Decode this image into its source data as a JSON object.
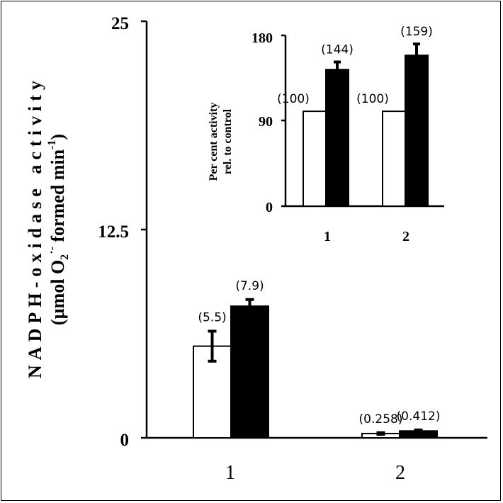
{
  "chart_data": [
    {
      "type": "bar",
      "ylabel_line1": "NADPH-oxidase activity",
      "ylabel_line2_parts": [
        "(µmol O",
        "2",
        "·",
        "-",
        " formed min",
        "-1",
        ")"
      ],
      "categories": [
        "1",
        "2"
      ],
      "ylim": [
        0,
        25
      ],
      "yticks": [
        "0",
        "12.5",
        "25"
      ],
      "series": [
        {
          "fill": "#ffffff",
          "values": [
            5.5,
            0.258
          ],
          "errors": [
            0.9,
            0.05
          ],
          "labels": [
            "(5.5)",
            "(0.258)"
          ]
        },
        {
          "fill": "#000000",
          "values": [
            7.9,
            0.412
          ],
          "errors": [
            0.4,
            0.06
          ],
          "labels": [
            "(7.9)",
            "(0.412)"
          ]
        }
      ]
    },
    {
      "type": "bar",
      "ylabel_lines": [
        "Per cent activity",
        "rel. to control"
      ],
      "categories": [
        "1",
        "2"
      ],
      "ylim": [
        0,
        180
      ],
      "yticks": [
        "0",
        "90",
        "180"
      ],
      "series": [
        {
          "fill": "#ffffff",
          "values": [
            100,
            100
          ],
          "errors": [
            0,
            0
          ],
          "labels": [
            "(100)",
            "(100)"
          ]
        },
        {
          "fill": "#000000",
          "values": [
            144,
            159
          ],
          "errors": [
            8,
            12
          ],
          "labels": [
            "(144)",
            "(159)"
          ]
        }
      ]
    }
  ]
}
